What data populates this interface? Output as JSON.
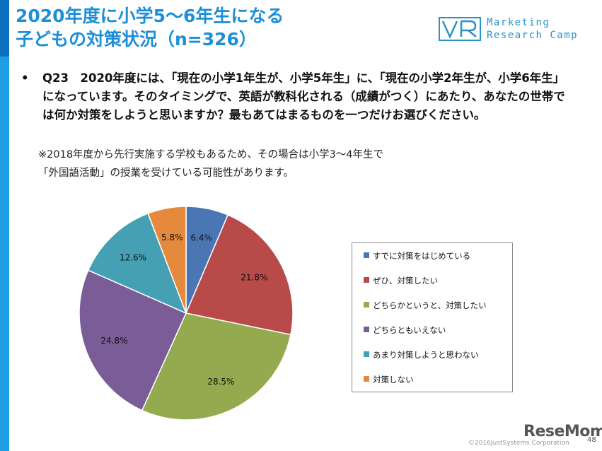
{
  "slide": {
    "title_line1": "2020年度に小学5～6年生になる",
    "title_line2": "子どもの対策状況（n=326）",
    "bullet": "•",
    "question": "Q23　2020年度には、「現在の小学1年生が、小学5年生」に、「現在の小学2年生が、小学6年生」になっています。そのタイミングで、英語が教科化される（成績がつく）にあたり、あなたの世帯では何か対策をしようと思いますか？最もあてはまるものを一つだけお選びください。",
    "note_line1": "※2018年度から先行実施する学校もあるため、その場合は小学3～4年生で",
    "note_line2": "「外国語活動」の授業を受けている可能性があります。",
    "logo_line1": "Marketing",
    "logo_line2": "Research Camp",
    "copyright": "©2016JustSystems Corporation",
    "brand": "ReseMom",
    "page_number": "48",
    "accent_color": "#1c8fd8",
    "bar_color": "#1f9ee6"
  },
  "chart_data": {
    "type": "pie",
    "title": "",
    "n": 326,
    "categories": [
      "すでに対策をはじめている",
      "ぜひ、対策したい",
      "どちらかというと、対策したい",
      "どちらともいえない",
      "あまり対策しようと思わない",
      "対策しない"
    ],
    "values": [
      6.4,
      21.8,
      28.5,
      24.8,
      12.6,
      5.8
    ],
    "labels": [
      "6.4%",
      "21.8%",
      "28.5%",
      "24.8%",
      "12.6%",
      "5.8%"
    ],
    "colors": [
      "#4a77b4",
      "#b84a4a",
      "#93aa4f",
      "#7a5c96",
      "#46a0b4",
      "#e58a3c"
    ],
    "legend_position": "right",
    "start_angle": "12 o'clock, clockwise"
  }
}
